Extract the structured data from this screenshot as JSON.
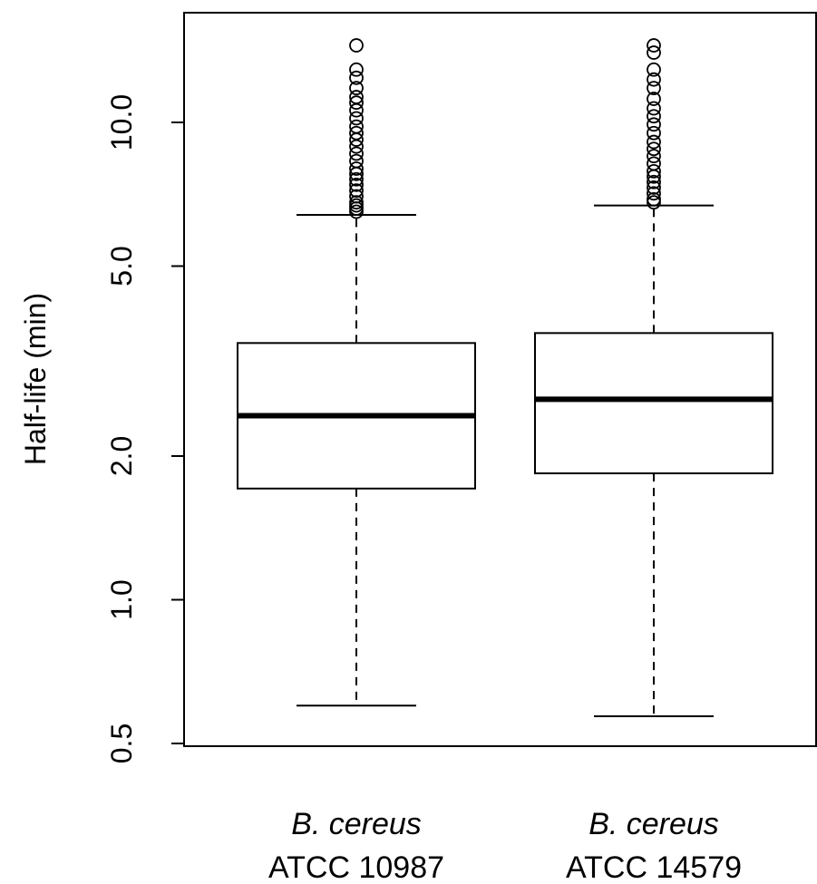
{
  "chart_data": {
    "type": "boxplot",
    "title": "",
    "ylabel": "Half-life (min)",
    "xlabel": "",
    "y_scale": "log",
    "ylim": [
      0.5,
      15.5
    ],
    "yticks": [
      0.5,
      1.0,
      2.0,
      5.0,
      10.0
    ],
    "ytick_labels": [
      "0.5",
      "1.0",
      "2.0",
      "5.0",
      "10.0"
    ],
    "grid": false,
    "colors": {
      "stroke": "#000000",
      "fill": "#ffffff"
    },
    "series": [
      {
        "label_species": "B. cereus",
        "label_strain": "ATCC 10987",
        "whisker_low": 0.6,
        "q1": 1.71,
        "median": 2.43,
        "q3": 3.45,
        "whisker_high": 6.4,
        "outliers": [
          6.5,
          6.6,
          6.7,
          6.8,
          7.0,
          7.2,
          7.4,
          7.6,
          7.8,
          8.0,
          8.3,
          8.6,
          8.9,
          9.2,
          9.5,
          9.8,
          10.2,
          10.6,
          11.0,
          11.3,
          11.8,
          12.4,
          12.9,
          14.5
        ]
      },
      {
        "label_species": "B. cereus",
        "label_strain": "ATCC 14579",
        "whisker_low": 0.57,
        "q1": 1.84,
        "median": 2.63,
        "q3": 3.62,
        "whisker_high": 6.7,
        "outliers": [
          6.8,
          6.9,
          7.1,
          7.3,
          7.5,
          7.7,
          7.9,
          8.2,
          8.5,
          8.8,
          9.1,
          9.5,
          9.9,
          10.3,
          10.7,
          11.2,
          11.8,
          12.3,
          12.9,
          14.0,
          14.5
        ]
      }
    ]
  }
}
